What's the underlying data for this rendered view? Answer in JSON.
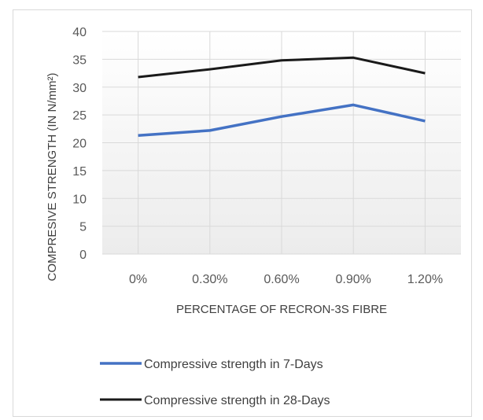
{
  "chart_data": {
    "type": "line",
    "categories": [
      "0%",
      "0.30%",
      "0.60%",
      "0.90%",
      "1.20%"
    ],
    "series": [
      {
        "name": "Compressive strength in 7-Days",
        "values": [
          21.3,
          22.2,
          24.7,
          26.8,
          23.9
        ],
        "color": "#4472c4"
      },
      {
        "name": "Compressive strength  in 28-Days",
        "values": [
          31.8,
          33.2,
          34.8,
          35.3,
          32.5
        ],
        "color": "#1a1a1a"
      }
    ],
    "title": "",
    "xlabel": "PERCENTAGE OF RECRON-3S FIBRE",
    "ylabel": "COMPRESIVE STRENGTH (IN N/mm²)",
    "ylim": [
      0,
      40
    ],
    "yticks": [
      0,
      5,
      10,
      15,
      20,
      25,
      30,
      35,
      40
    ],
    "grid": true,
    "legend_position": "bottom"
  }
}
